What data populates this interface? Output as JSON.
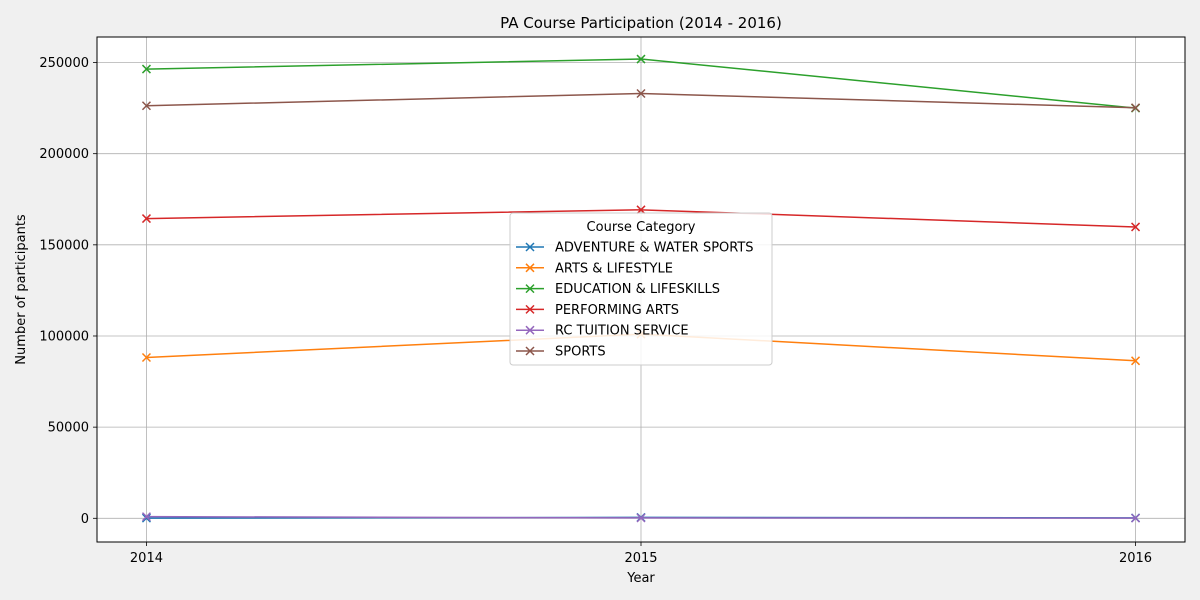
{
  "chart_data": {
    "type": "line",
    "title": "PA Course Participation (2014 - 2016)",
    "xlabel": "Year",
    "ylabel": "Number of participants",
    "x": [
      2014,
      2015,
      2016
    ],
    "x_tick_labels": [
      "2014",
      "2015",
      "2016"
    ],
    "xlim": [
      2013.9,
      2016.1
    ],
    "ylim": [
      -13000,
      264000
    ],
    "y_ticks": [
      0,
      50000,
      100000,
      150000,
      200000,
      250000
    ],
    "y_tick_labels": [
      "0",
      "50000",
      "100000",
      "150000",
      "200000",
      "250000"
    ],
    "grid": true,
    "marker": "x",
    "legend": {
      "title": "Course Category",
      "placement": "center"
    },
    "series": [
      {
        "name": "ADVENTURE & WATER SPORTS",
        "color": "#1f77b4",
        "values": [
          100,
          500,
          200
        ]
      },
      {
        "name": "ARTS & LIFESTYLE",
        "color": "#ff7f0e",
        "values": [
          88200,
          101000,
          86400
        ]
      },
      {
        "name": "EDUCATION & LIFESKILLS",
        "color": "#2ca02c",
        "values": [
          246400,
          251900,
          225000
        ]
      },
      {
        "name": "PERFORMING ARTS",
        "color": "#d62728",
        "values": [
          164400,
          169200,
          159800
        ]
      },
      {
        "name": "RC TUITION SERVICE",
        "color": "#9467bd",
        "values": [
          900,
          200,
          100
        ]
      },
      {
        "name": "SPORTS",
        "color": "#8c564b",
        "values": [
          226300,
          233000,
          225200
        ]
      }
    ]
  }
}
